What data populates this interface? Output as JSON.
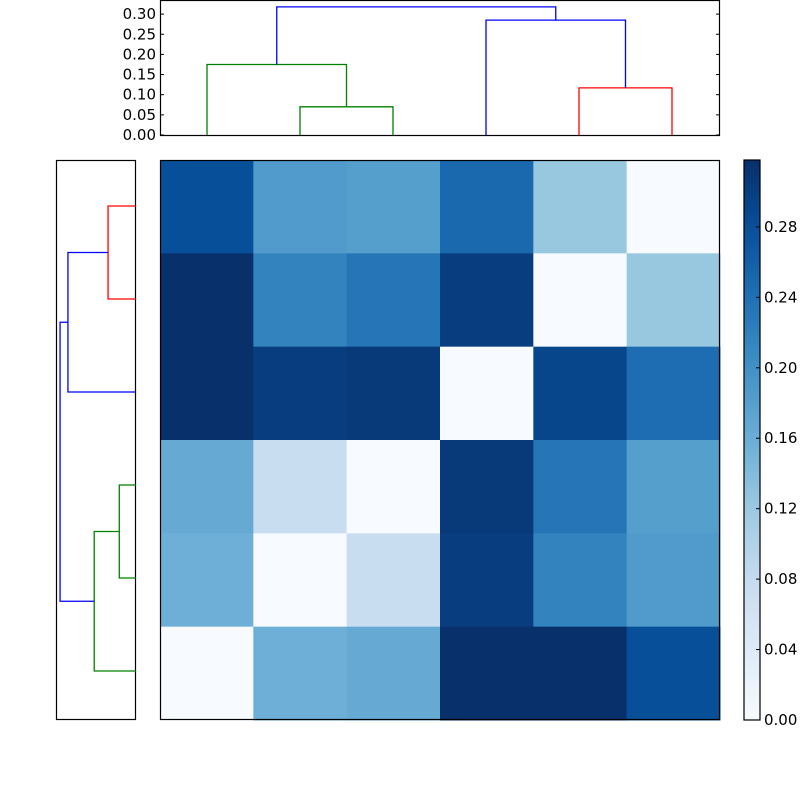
{
  "chart_data": [
    {
      "type": "dendrogram",
      "orientation": "top",
      "title": "",
      "ylim": [
        0.0,
        0.335
      ],
      "yticks": [
        "0.00",
        "0.05",
        "0.10",
        "0.15",
        "0.20",
        "0.25",
        "0.30"
      ],
      "ytick_values": [
        0.0,
        0.05,
        0.1,
        0.15,
        0.2,
        0.25,
        0.3
      ],
      "leaves": 6,
      "links": [
        {
          "color": "#008000",
          "left": 2,
          "right": 3,
          "height": 0.07
        },
        {
          "color": "#008000",
          "left": 1,
          "right": 2.5,
          "height": 0.175
        },
        {
          "color": "#ff0000",
          "left": 5,
          "right": 6,
          "height": 0.117
        },
        {
          "color": "#0000ff",
          "left": 4,
          "right": 5.5,
          "height": 0.285
        },
        {
          "color": "#0000ff",
          "left": 1.75,
          "right": 4.75,
          "height": 0.318
        }
      ]
    },
    {
      "type": "dendrogram",
      "orientation": "left",
      "leaves": 6,
      "links": [
        {
          "color": "#ff0000",
          "top": 1,
          "bottom": 2,
          "height": 0.117
        },
        {
          "color": "#0000ff",
          "top": 1.5,
          "bottom": 3,
          "height": 0.285
        },
        {
          "color": "#008000",
          "top": 4,
          "bottom": 5,
          "height": 0.07
        },
        {
          "color": "#008000",
          "top": 4.5,
          "bottom": 6,
          "height": 0.175
        },
        {
          "color": "#0000ff",
          "top": 2.25,
          "bottom": 5.25,
          "height": 0.318
        }
      ]
    },
    {
      "type": "heatmap",
      "colormap": "Blues",
      "vmin": 0.0,
      "vmax": 0.3,
      "rows": 6,
      "cols": 6,
      "values": [
        [
          0.265,
          0.175,
          0.17,
          0.235,
          0.117,
          0.0
        ],
        [
          0.3,
          0.205,
          0.22,
          0.285,
          0.0,
          0.117
        ],
        [
          0.318,
          0.285,
          0.29,
          0.0,
          0.275,
          0.23
        ],
        [
          0.155,
          0.07,
          0.0,
          0.29,
          0.22,
          0.17
        ],
        [
          0.148,
          0.0,
          0.07,
          0.285,
          0.205,
          0.175
        ],
        [
          0.0,
          0.148,
          0.155,
          0.318,
          0.31,
          0.265
        ]
      ],
      "colorbar": {
        "ticks": [
          "0.00",
          "0.04",
          "0.08",
          "0.12",
          "0.16",
          "0.20",
          "0.24",
          "0.28"
        ],
        "tick_values": [
          0.0,
          0.04,
          0.08,
          0.12,
          0.16,
          0.2,
          0.24,
          0.28
        ]
      }
    }
  ]
}
